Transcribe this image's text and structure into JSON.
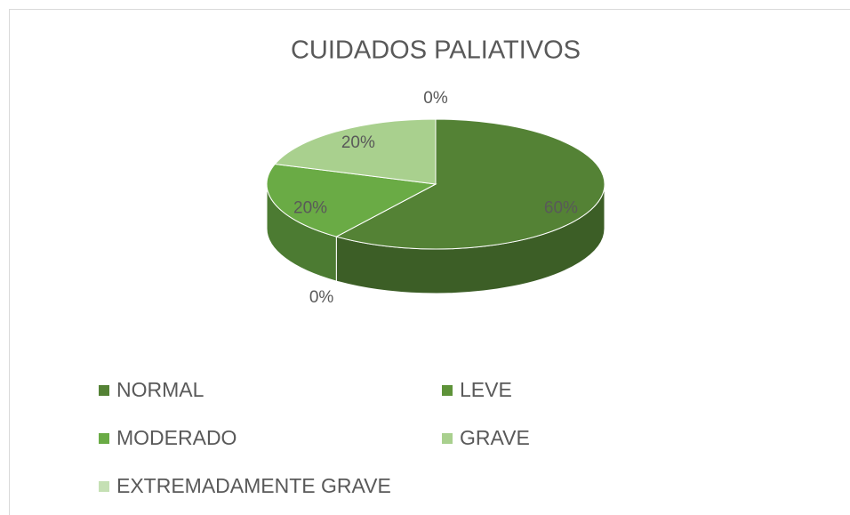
{
  "chart_data": {
    "type": "pie3d",
    "title": "CUIDADOS PALIATIVOS",
    "categories": [
      "NORMAL",
      "LEVE",
      "MODERADO",
      "GRAVE",
      "EXTREMADAMENTE GRAVE"
    ],
    "values": [
      60,
      0,
      20,
      20,
      0
    ],
    "value_labels": [
      "60%",
      "0%",
      "20%",
      "20%",
      "0%"
    ],
    "colors": [
      "#548235",
      "#5e9339",
      "#6aab45",
      "#a9d08e",
      "#c5e0b4"
    ],
    "legend": "bottom"
  }
}
